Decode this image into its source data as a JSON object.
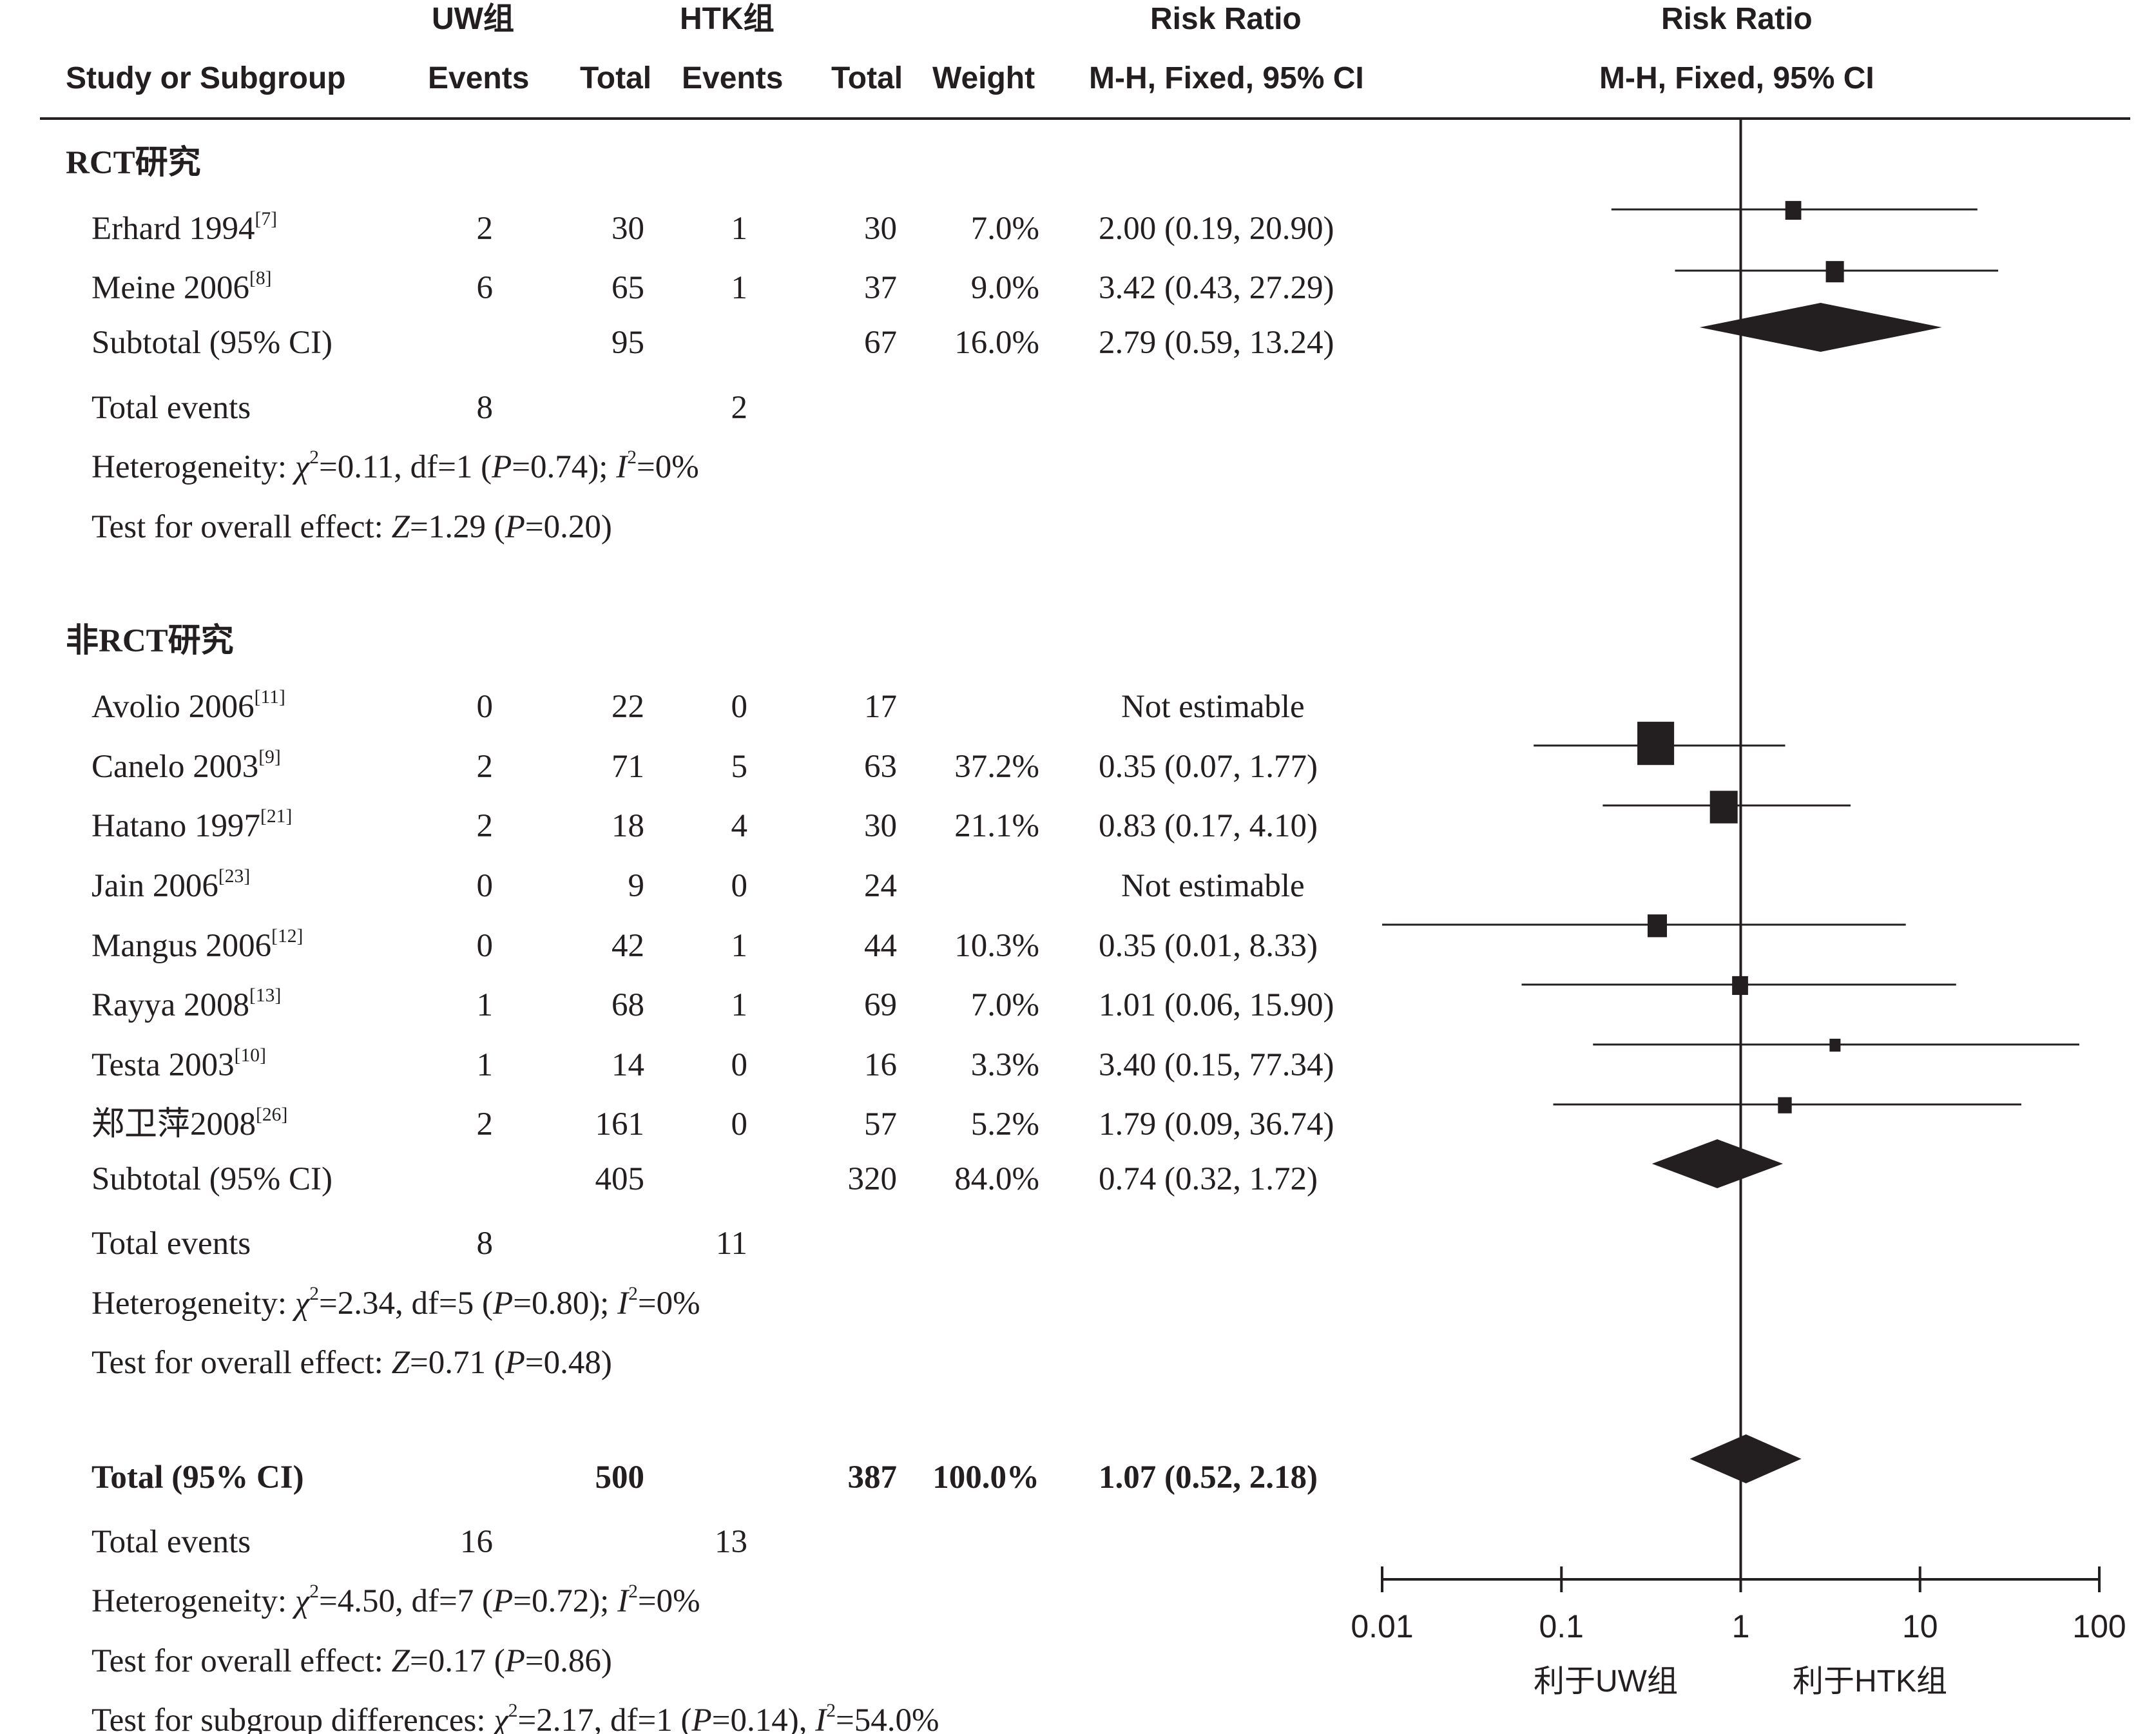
{
  "header": {
    "group1": "UW组",
    "group2": "HTK组",
    "rr_title1": "Risk Ratio",
    "rr_title2": "Risk Ratio",
    "study": "Study or Subgroup",
    "events1": "Events",
    "total1": "Total",
    "events2": "Events",
    "total2": "Total",
    "weight": "Weight",
    "method1": "M-H, Fixed, 95% CI",
    "method2": "M-H, Fixed, 95% CI"
  },
  "subgroups": [
    {
      "title": "RCT研究",
      "studies": [
        {
          "name": "Erhard 1994",
          "ref": "[7]",
          "e1": "2",
          "n1": "30",
          "e2": "1",
          "n2": "30",
          "weight": "7.0%",
          "ci": "2.00 (0.19, 20.90)"
        },
        {
          "name": "Meine 2006",
          "ref": "[8]",
          "e1": "6",
          "n1": "65",
          "e2": "1",
          "n2": "37",
          "weight": "9.0%",
          "ci": "3.42 (0.43, 27.29)"
        }
      ],
      "subtotal": {
        "label": "Subtotal (95% CI)",
        "n1": "95",
        "n2": "67",
        "weight": "16.0%",
        "ci": "2.79 (0.59, 13.24)"
      },
      "events": {
        "label": "Total events",
        "e1": "8",
        "e2": "2"
      },
      "het": {
        "prefix": "Heterogeneity: ",
        "chi_sym": "χ",
        "chi_sup": "2",
        "chi_val": "=0.11, df=1 (",
        "p_sym": "P",
        "p_val": "=0.74); ",
        "i_sym": "I",
        "i_sup": "2",
        "i_val": "=0%"
      },
      "test": {
        "prefix": "Test for overall effect: ",
        "z_sym": "Z",
        "z_val": "=1.29 (",
        "p_sym": "P",
        "p_val": "=0.20)"
      }
    },
    {
      "title": "非RCT研究",
      "studies": [
        {
          "name": "Avolio 2006",
          "ref": "[11]",
          "e1": "0",
          "n1": "22",
          "e2": "0",
          "n2": "17",
          "weight": "",
          "ci": "Not estimable"
        },
        {
          "name": "Canelo 2003",
          "ref": "[9]",
          "e1": "2",
          "n1": "71",
          "e2": "5",
          "n2": "63",
          "weight": "37.2%",
          "ci": "0.35 (0.07, 1.77)"
        },
        {
          "name": "Hatano 1997",
          "ref": "[21]",
          "e1": "2",
          "n1": "18",
          "e2": "4",
          "n2": "30",
          "weight": "21.1%",
          "ci": "0.83 (0.17, 4.10)"
        },
        {
          "name": "Jain 2006",
          "ref": "[23]",
          "e1": "0",
          "n1": "9",
          "e2": "0",
          "n2": "24",
          "weight": "",
          "ci": "Not estimable"
        },
        {
          "name": "Mangus 2006",
          "ref": "[12]",
          "e1": "0",
          "n1": "42",
          "e2": "1",
          "n2": "44",
          "weight": "10.3%",
          "ci": "0.35 (0.01, 8.33)"
        },
        {
          "name": "Rayya 2008",
          "ref": "[13]",
          "e1": "1",
          "n1": "68",
          "e2": "1",
          "n2": "69",
          "weight": "7.0%",
          "ci": "1.01 (0.06, 15.90)"
        },
        {
          "name": "Testa 2003",
          "ref": "[10]",
          "e1": "1",
          "n1": "14",
          "e2": "0",
          "n2": "16",
          "weight": "3.3%",
          "ci": "3.40 (0.15, 77.34)"
        },
        {
          "name": "郑卫萍2008",
          "ref": "[26]",
          "e1": "2",
          "n1": "161",
          "e2": "0",
          "n2": "57",
          "weight": "5.2%",
          "ci": "1.79 (0.09, 36.74)"
        }
      ],
      "subtotal": {
        "label": "Subtotal (95% CI)",
        "n1": "405",
        "n2": "320",
        "weight": "84.0%",
        "ci": "0.74 (0.32, 1.72)"
      },
      "events": {
        "label": "Total events",
        "e1": "8",
        "e2": "11"
      },
      "het": {
        "prefix": "Heterogeneity: ",
        "chi_sym": "χ",
        "chi_sup": "2",
        "chi_val": "=2.34, df=5 (",
        "p_sym": "P",
        "p_val": "=0.80); ",
        "i_sym": "I",
        "i_sup": "2",
        "i_val": "=0%"
      },
      "test": {
        "prefix": "Test for overall effect: ",
        "z_sym": "Z",
        "z_val": "=0.71 (",
        "p_sym": "P",
        "p_val": "=0.48)"
      }
    }
  ],
  "total": {
    "label": "Total (95% CI)",
    "n1": "500",
    "n2": "387",
    "weight": "100.0%",
    "ci": "1.07 (0.52, 2.18)",
    "events": {
      "label": "Total events",
      "e1": "16",
      "e2": "13"
    },
    "het": {
      "prefix": "Heterogeneity: ",
      "chi_sym": "χ",
      "chi_sup": "2",
      "chi_val": "=4.50, df=7 (",
      "p_sym": "P",
      "p_val": "=0.72); ",
      "i_sym": "I",
      "i_sup": "2",
      "i_val": "=0%"
    },
    "test": {
      "prefix": "Test for overall effect: ",
      "z_sym": "Z",
      "z_val": "=0.17 (",
      "p_sym": "P",
      "p_val": "=0.86)"
    },
    "subgroup_test": {
      "prefix": "Test for subgroup differences: ",
      "chi_sym": "χ",
      "chi_sup": "2",
      "chi_val": "=2.17, df=1 (",
      "p_sym": "P",
      "p_val": "=0.14), ",
      "i_sym": "I",
      "i_sup": "2",
      "i_val": "=54.0%"
    }
  },
  "axis_labels": {
    "favours_left": "利于UW组",
    "favours_right": "利于HTK组"
  },
  "chart_data": {
    "type": "forest",
    "x_scale": "log",
    "xlim": [
      0.01,
      100
    ],
    "ticks": [
      0.01,
      0.1,
      1,
      10,
      100
    ],
    "tick_labels": [
      "0.01",
      "0.1",
      "1",
      "10",
      "100"
    ],
    "null_value": 1,
    "studies": [
      {
        "name": "Erhard 1994",
        "rr": 2.0,
        "lower": 0.19,
        "upper": 20.9,
        "weight": 7.0
      },
      {
        "name": "Meine 2006",
        "rr": 3.42,
        "lower": 0.43,
        "upper": 27.29,
        "weight": 9.0
      },
      {
        "name": "Canelo 2003",
        "rr": 0.35,
        "lower": 0.07,
        "upper": 1.77,
        "weight": 37.2
      },
      {
        "name": "Hatano 1997",
        "rr": 0.83,
        "lower": 0.17,
        "upper": 4.1,
        "weight": 21.1
      },
      {
        "name": "Mangus 2006",
        "rr": 0.35,
        "lower": 0.01,
        "upper": 8.33,
        "weight": 10.3
      },
      {
        "name": "Rayya 2008",
        "rr": 1.01,
        "lower": 0.06,
        "upper": 15.9,
        "weight": 7.0
      },
      {
        "name": "Testa 2003",
        "rr": 3.4,
        "lower": 0.15,
        "upper": 77.34,
        "weight": 3.3
      },
      {
        "name": "郑卫萍2008",
        "rr": 1.79,
        "lower": 0.09,
        "upper": 36.74,
        "weight": 5.2
      }
    ],
    "pooled": [
      {
        "name": "RCT研究 Subtotal",
        "rr": 2.79,
        "lower": 0.59,
        "upper": 13.24
      },
      {
        "name": "非RCT研究 Subtotal",
        "rr": 0.74,
        "lower": 0.32,
        "upper": 1.72
      },
      {
        "name": "Total",
        "rr": 1.07,
        "lower": 0.52,
        "upper": 2.18
      }
    ],
    "colors": {
      "ink": "#231f20"
    }
  }
}
